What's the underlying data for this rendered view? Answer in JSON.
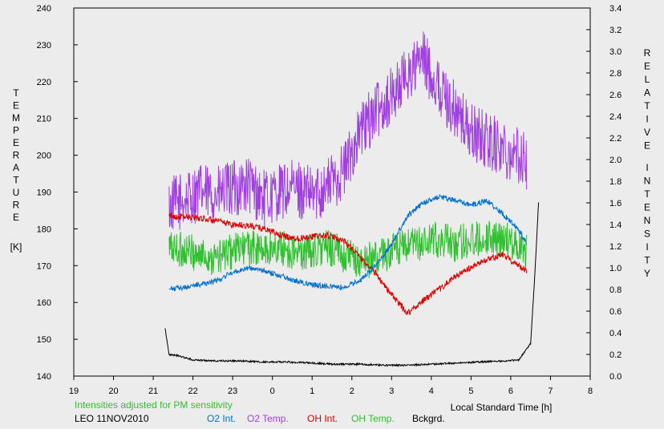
{
  "chart_data": {
    "type": "line",
    "xlabel": "Local Standard Time [h]",
    "left_axis": {
      "label_letters": [
        "T",
        "E",
        "M",
        "P",
        "E",
        "R",
        "A",
        "T",
        "U",
        "R",
        "E"
      ],
      "unit": "[K]",
      "range": [
        140,
        240
      ],
      "ticks": [
        "140",
        "150",
        "160",
        "170",
        "180",
        "190",
        "200",
        "210",
        "220",
        "230",
        "240"
      ]
    },
    "right_axis": {
      "label_letters": [
        "R",
        "E",
        "L",
        "A",
        "T",
        "I",
        "V",
        "E"
      ],
      "label_letters2": [
        "I",
        "N",
        "T",
        "E",
        "N",
        "S",
        "I",
        "T",
        "Y"
      ],
      "range": [
        0.0,
        3.4
      ],
      "ticks": [
        "0.0",
        "0.2",
        "0.4",
        "0.6",
        "0.8",
        "1.0",
        "1.2",
        "1.4",
        "1.6",
        "1.8",
        "2.0",
        "2.2",
        "2.4",
        "2.6",
        "2.8",
        "3.0",
        "3.2",
        "3.4"
      ]
    },
    "x_ticks": [
      "19",
      "20",
      "21",
      "22",
      "23",
      "0",
      "1",
      "2",
      "3",
      "4",
      "5",
      "6",
      "7",
      "8"
    ],
    "x_range": [
      19,
      32
    ],
    "note": "Intensities adjusted for PM sensitivity",
    "station": "LEO 11NOV2010",
    "legend": [
      {
        "name": "O2 Int.",
        "color": "#0070d0"
      },
      {
        "name": "O2 Temp.",
        "color": "#a040e0"
      },
      {
        "name": "OH Int.",
        "color": "#e00000"
      },
      {
        "name": "OH Temp.",
        "color": "#30c030"
      },
      {
        "name": "Bckgrd.",
        "color": "#000000"
      }
    ],
    "series": [
      {
        "key": "o2temp",
        "axis": "left",
        "color": "#a040e0",
        "jitter": 8,
        "x": [
          21.4,
          21.8,
          22.2,
          22.6,
          23.0,
          23.4,
          23.8,
          24.2,
          24.6,
          25.0,
          25.4,
          25.8,
          26.2,
          26.6,
          27.0,
          27.4,
          27.8,
          28.2,
          28.6,
          29.0,
          29.4,
          29.8,
          30.2,
          30.4
        ],
        "y": [
          186,
          188,
          190,
          189,
          191,
          192,
          188,
          190,
          191,
          189,
          192,
          196,
          206,
          212,
          216,
          222,
          226,
          218,
          212,
          206,
          204,
          202,
          200,
          198
        ]
      },
      {
        "key": "ohtemp",
        "axis": "left",
        "color": "#30c030",
        "jitter": 5,
        "x": [
          21.4,
          21.8,
          22.2,
          22.6,
          23.0,
          23.4,
          23.8,
          24.2,
          24.6,
          25.0,
          25.4,
          25.8,
          26.2,
          26.6,
          27.0,
          27.4,
          27.8,
          28.2,
          28.6,
          29.0,
          29.4,
          29.8,
          30.2,
          30.4
        ],
        "y": [
          175,
          174,
          173,
          172,
          174,
          175,
          174,
          175,
          173,
          174,
          175,
          173,
          171,
          172,
          174,
          175,
          176,
          177,
          176,
          177,
          178,
          177,
          176,
          174
        ]
      },
      {
        "key": "ohint",
        "axis": "right",
        "color": "#e00000",
        "jitter": 0.03,
        "x": [
          21.4,
          21.8,
          22.2,
          22.6,
          23.0,
          23.4,
          23.8,
          24.2,
          24.6,
          25.0,
          25.4,
          25.8,
          26.2,
          26.6,
          27.0,
          27.4,
          27.8,
          28.2,
          28.6,
          29.0,
          29.4,
          29.8,
          30.2,
          30.4
        ],
        "y": [
          1.48,
          1.47,
          1.46,
          1.43,
          1.4,
          1.39,
          1.36,
          1.3,
          1.27,
          1.29,
          1.3,
          1.25,
          1.1,
          0.95,
          0.75,
          0.58,
          0.7,
          0.8,
          0.92,
          1.0,
          1.08,
          1.12,
          1.02,
          0.97
        ]
      },
      {
        "key": "o2int",
        "axis": "right",
        "color": "#0070d0",
        "jitter": 0.025,
        "x": [
          21.4,
          21.8,
          22.2,
          22.6,
          23.0,
          23.4,
          23.8,
          24.2,
          24.6,
          25.0,
          25.4,
          25.8,
          26.2,
          26.6,
          27.0,
          27.4,
          27.8,
          28.2,
          28.6,
          29.0,
          29.4,
          29.8,
          30.2,
          30.4
        ],
        "y": [
          0.8,
          0.82,
          0.85,
          0.88,
          0.96,
          1.0,
          0.97,
          0.93,
          0.88,
          0.84,
          0.83,
          0.82,
          0.88,
          1.02,
          1.22,
          1.48,
          1.6,
          1.66,
          1.62,
          1.58,
          1.62,
          1.5,
          1.35,
          1.22
        ]
      },
      {
        "key": "bg",
        "axis": "right",
        "color": "#000000",
        "jitter": 0.008,
        "x": [
          21.3,
          21.4,
          21.6,
          22.0,
          22.6,
          23.2,
          23.8,
          24.4,
          25.0,
          25.6,
          26.2,
          26.8,
          27.4,
          28.0,
          28.6,
          29.2,
          29.8,
          30.2,
          30.5,
          30.6,
          30.7
        ],
        "y": [
          0.44,
          0.2,
          0.19,
          0.15,
          0.14,
          0.14,
          0.13,
          0.13,
          0.12,
          0.11,
          0.11,
          0.1,
          0.1,
          0.11,
          0.12,
          0.13,
          0.14,
          0.15,
          0.3,
          0.9,
          1.6
        ]
      }
    ]
  }
}
